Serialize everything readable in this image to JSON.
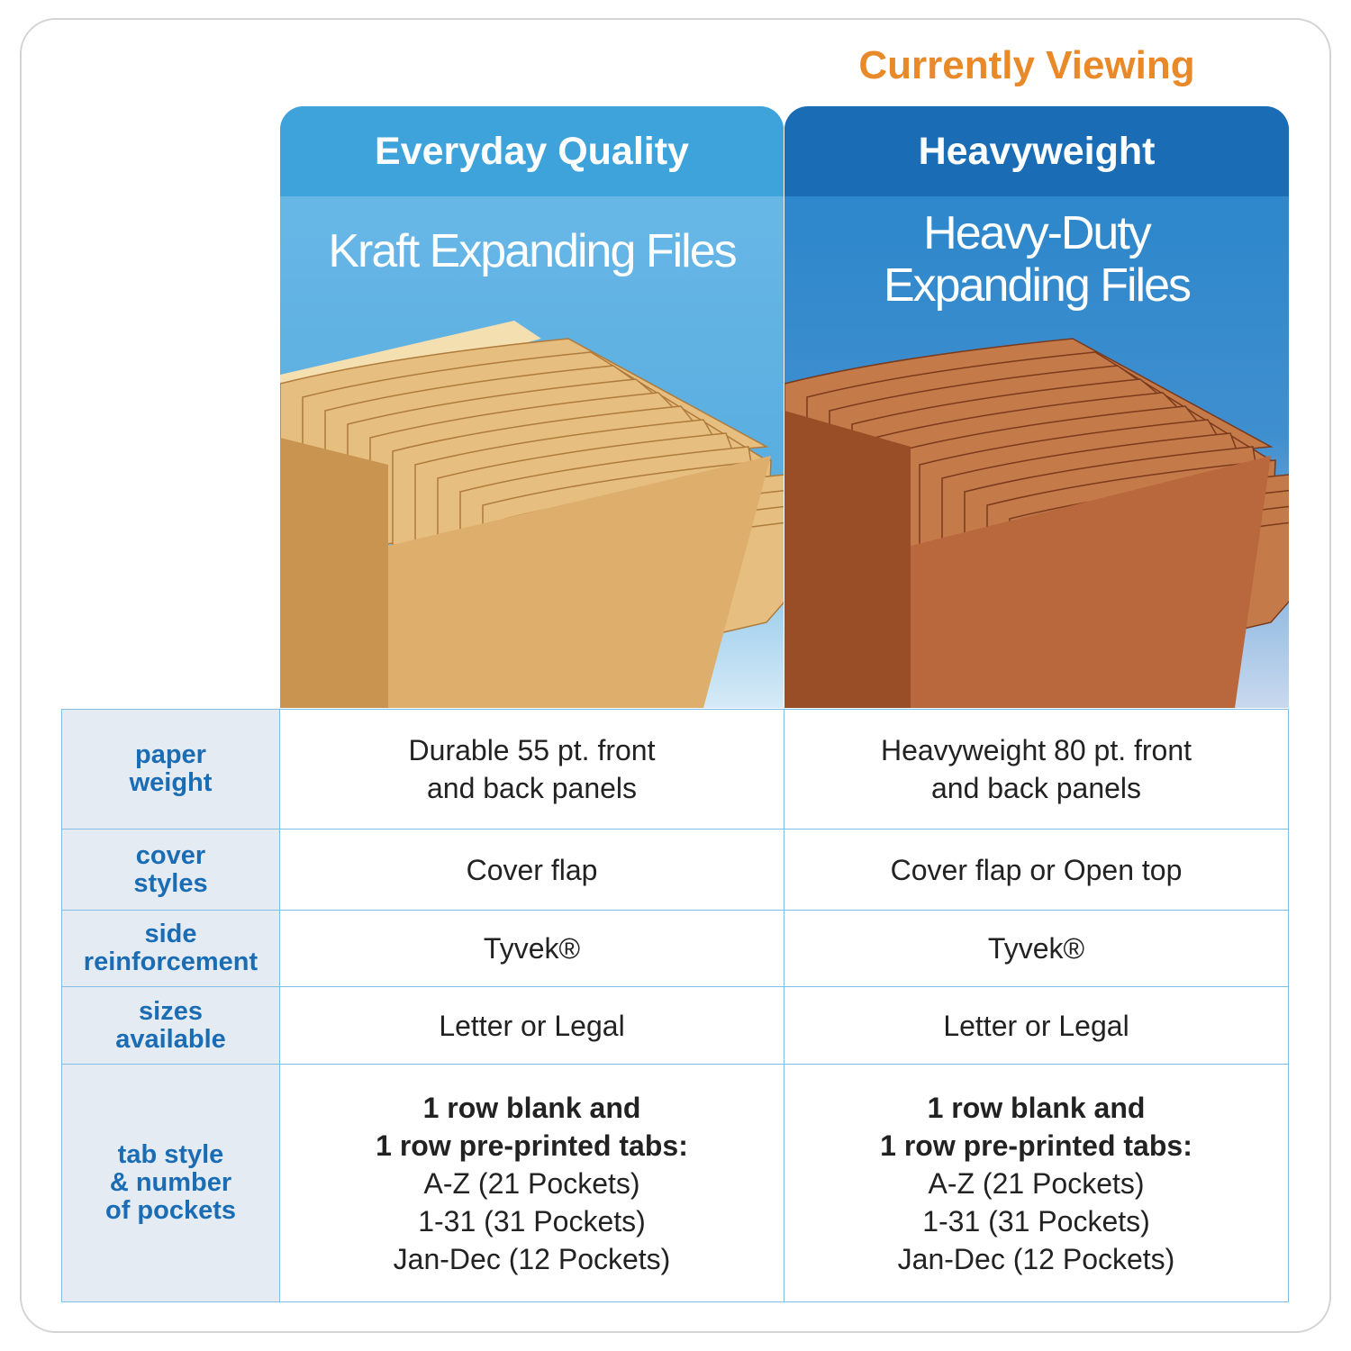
{
  "badge": "Currently Viewing",
  "colors": {
    "accent_orange": "#e8892a",
    "blue_light": "#3fa3db",
    "blue_dark": "#1a6db4",
    "kraft": "#d9a866",
    "redrope": "#b5643a"
  },
  "products": [
    {
      "header": "Everyday Quality",
      "title": "Kraft Expanding Files",
      "image": "kraft-expanding-file"
    },
    {
      "header": "Heavyweight",
      "title_lines": [
        "Heavy-Duty",
        "Expanding Files"
      ],
      "image": "heavy-duty-expanding-file"
    }
  ],
  "rows": [
    {
      "label": [
        "paper",
        "weight"
      ],
      "values": [
        [
          "Durable 55 pt. front",
          "and back panels"
        ],
        [
          "Heavyweight 80 pt. front",
          "and back panels"
        ]
      ]
    },
    {
      "label": [
        "cover",
        "styles"
      ],
      "values": [
        [
          "Cover flap"
        ],
        [
          "Cover flap or Open top"
        ]
      ]
    },
    {
      "label": [
        "side",
        "reinforcement"
      ],
      "values": [
        [
          "Tyvek®"
        ],
        [
          "Tyvek®"
        ]
      ]
    },
    {
      "label": [
        "sizes",
        "available"
      ],
      "values": [
        [
          "Letter or Legal"
        ],
        [
          "Letter or Legal"
        ]
      ]
    },
    {
      "label": [
        "tab style",
        "& number",
        "of pockets"
      ],
      "bold": [
        "1 row blank and",
        "1 row pre-printed tabs:"
      ],
      "values": [
        [
          "A-Z (21 Pockets)",
          "1-31 (31 Pockets)",
          "Jan-Dec (12 Pockets)"
        ],
        [
          "A-Z (21 Pockets)",
          "1-31 (31 Pockets)",
          "Jan-Dec (12 Pockets)"
        ]
      ]
    }
  ]
}
